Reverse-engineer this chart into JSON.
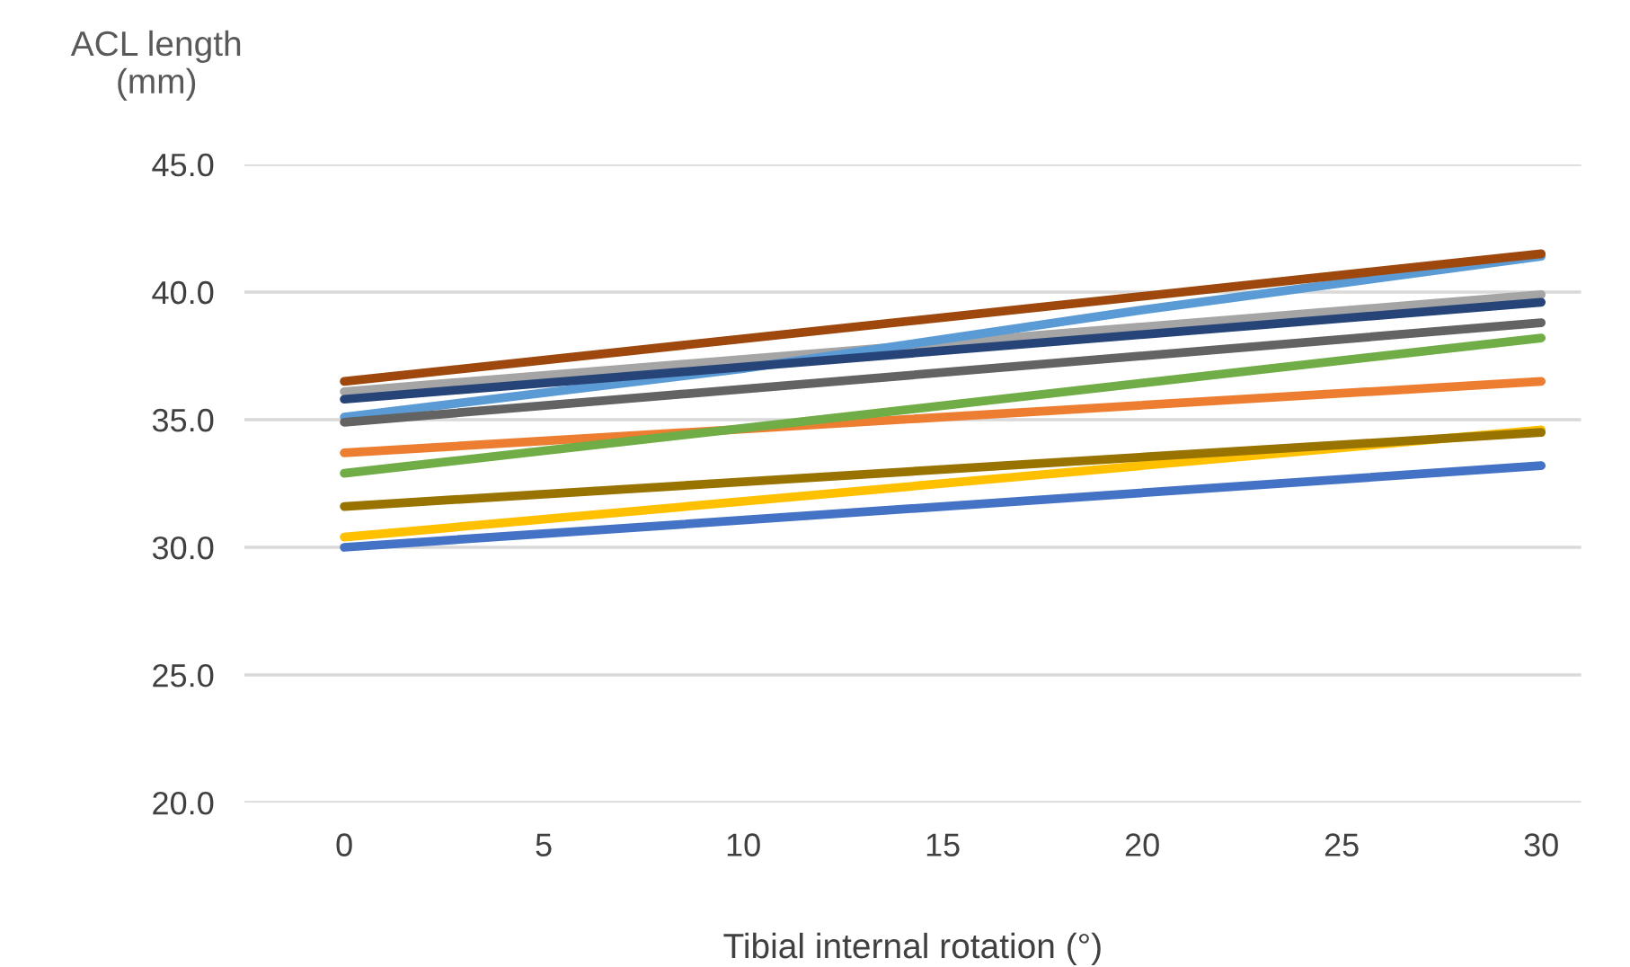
{
  "chart_data": {
    "type": "line",
    "xlabel": "Tibial internal rotation (°)",
    "ylabel": "ACL length\n(mm)",
    "xlim": [
      -2.5,
      31
    ],
    "xticks": [
      0,
      5,
      10,
      15,
      20,
      25,
      30
    ],
    "ylim": [
      20,
      45
    ],
    "yticks": [
      {
        "value": 20,
        "label": "20.0"
      },
      {
        "value": 25,
        "label": "25.0"
      },
      {
        "value": 30,
        "label": "30.0"
      },
      {
        "value": 35,
        "label": "35.0"
      },
      {
        "value": 40,
        "label": "40.0"
      },
      {
        "value": 45,
        "label": "45.0"
      }
    ],
    "grid": "y",
    "legend": false,
    "marker": "none",
    "line_style": "solid",
    "series": [
      {
        "color": "#4472c4",
        "x": [
          0,
          30
        ],
        "values": [
          30.0,
          33.2
        ]
      },
      {
        "color": "#ed7d31",
        "x": [
          0,
          30
        ],
        "values": [
          33.7,
          36.5
        ]
      },
      {
        "color": "#a5a5a5",
        "x": [
          0,
          30
        ],
        "values": [
          36.1,
          39.9
        ]
      },
      {
        "color": "#ffc000",
        "x": [
          0,
          30
        ],
        "values": [
          30.4,
          34.6
        ]
      },
      {
        "color": "#5b9bd5",
        "x": [
          0,
          10,
          20,
          30
        ],
        "values": [
          35.1,
          37.0,
          39.3,
          41.4
        ]
      },
      {
        "color": "#70ad47",
        "x": [
          0,
          30
        ],
        "values": [
          32.9,
          38.2
        ]
      },
      {
        "color": "#264478",
        "x": [
          0,
          30
        ],
        "values": [
          35.8,
          39.6
        ]
      },
      {
        "color": "#9e480e",
        "x": [
          0,
          30
        ],
        "values": [
          36.5,
          41.5
        ]
      },
      {
        "color": "#636363",
        "x": [
          0,
          30
        ],
        "values": [
          34.9,
          38.8
        ]
      },
      {
        "color": "#997300",
        "x": [
          0,
          30
        ],
        "values": [
          31.6,
          34.5
        ]
      }
    ]
  }
}
